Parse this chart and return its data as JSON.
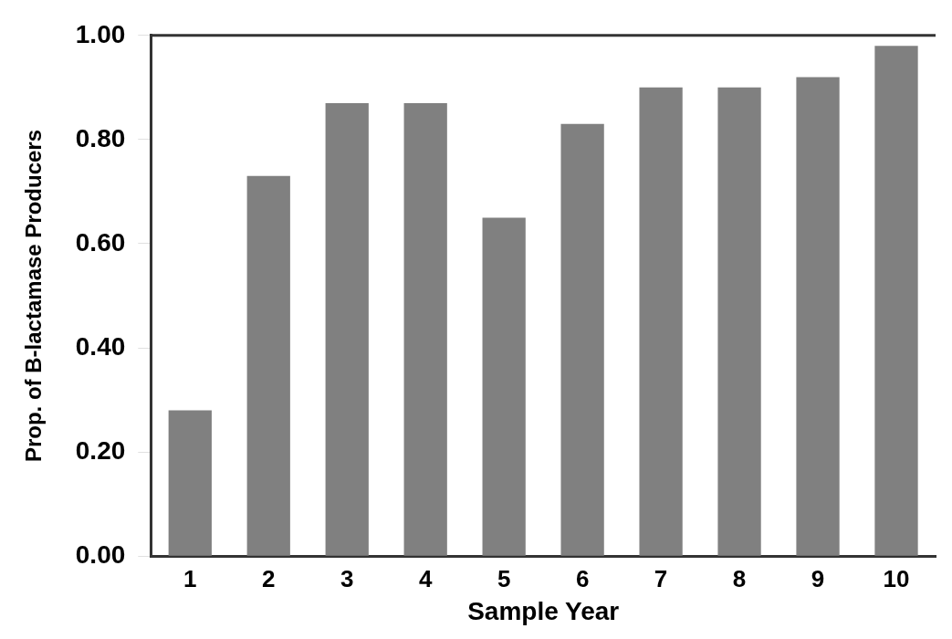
{
  "chart_data": {
    "type": "bar",
    "xlabel": "Sample Year",
    "ylabel": "Prop. of B-lactamase Producers",
    "categories": [
      "1",
      "2",
      "3",
      "4",
      "5",
      "6",
      "7",
      "8",
      "9",
      "10"
    ],
    "values": [
      0.28,
      0.73,
      0.87,
      0.87,
      0.65,
      0.83,
      0.9,
      0.9,
      0.92,
      0.98
    ],
    "color": "#808080",
    "ylim": [
      0,
      1
    ],
    "yticks": [
      {
        "value": 0,
        "label": "0.00"
      },
      {
        "value": 0.2,
        "label": "0.20"
      },
      {
        "value": 0.4,
        "label": "0.40"
      },
      {
        "value": 0.6,
        "label": "0.60"
      },
      {
        "value": 0.8,
        "label": "0.80"
      },
      {
        "value": 1,
        "label": "1.00"
      }
    ],
    "grid": false,
    "legend": false
  }
}
